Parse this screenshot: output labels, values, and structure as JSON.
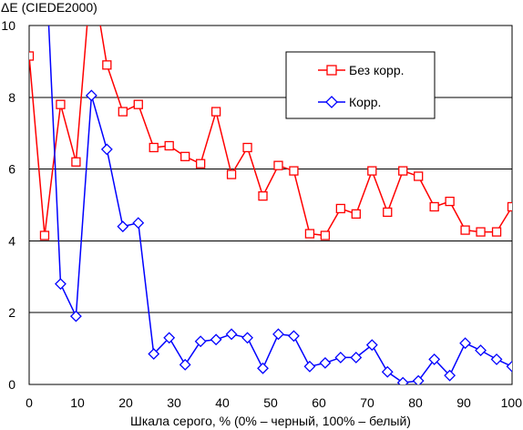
{
  "chart_data": {
    "type": "line",
    "title": "",
    "ylabel": "ΔE (CIEDE2000)",
    "xlabel": "Шкала серого, % (0% – черный, 100% – белый)",
    "xlim": [
      0,
      100
    ],
    "ylim": [
      0,
      10
    ],
    "xticks": [
      "0",
      "10",
      "20",
      "30",
      "40",
      "50",
      "60",
      "70",
      "80",
      "90",
      "100"
    ],
    "yticks": [
      "0",
      "2",
      "4",
      "6",
      "8",
      "10"
    ],
    "grid": "horizontal",
    "legend_position": "top-right",
    "series": [
      {
        "name": "Без корр.",
        "color": "#ff0000",
        "marker": "square",
        "x": [
          0,
          3.2,
          6.5,
          9.7,
          12.9,
          16.1,
          19.4,
          22.6,
          25.8,
          29,
          32.3,
          35.5,
          38.7,
          41.9,
          45.2,
          48.4,
          51.6,
          54.8,
          58.1,
          61.3,
          64.5,
          67.7,
          71,
          74.2,
          77.4,
          80.6,
          83.9,
          87.1,
          90.3,
          93.5,
          96.8,
          100
        ],
        "y": [
          9.15,
          4.15,
          7.8,
          6.2,
          11.5,
          8.9,
          7.6,
          7.8,
          6.6,
          6.65,
          6.35,
          6.15,
          7.6,
          5.85,
          6.6,
          5.25,
          6.1,
          5.95,
          4.2,
          4.15,
          4.9,
          4.75,
          5.95,
          4.8,
          5.95,
          5.8,
          4.95,
          5.1,
          4.3,
          4.25,
          4.25,
          4.95
        ]
      },
      {
        "name": "Корр.",
        "color": "#0000ff",
        "marker": "diamond",
        "x": [
          3.2,
          6.5,
          9.7,
          12.9,
          16.1,
          19.4,
          22.6,
          25.8,
          29,
          32.3,
          35.5,
          38.7,
          41.9,
          45.2,
          48.4,
          51.6,
          54.8,
          58.1,
          61.3,
          64.5,
          67.7,
          71,
          74.2,
          77.4,
          80.6,
          83.9,
          87.1,
          90.3,
          93.5,
          96.8,
          100
        ],
        "y": [
          12.5,
          2.8,
          1.9,
          8.05,
          6.55,
          4.4,
          4.5,
          0.85,
          1.3,
          0.55,
          1.2,
          1.25,
          1.4,
          1.3,
          0.45,
          1.4,
          1.35,
          0.5,
          0.6,
          0.75,
          0.75,
          1.1,
          0.35,
          0.05,
          0.1,
          0.7,
          0.25,
          1.15,
          0.95,
          0.7,
          0.5
        ]
      }
    ]
  }
}
